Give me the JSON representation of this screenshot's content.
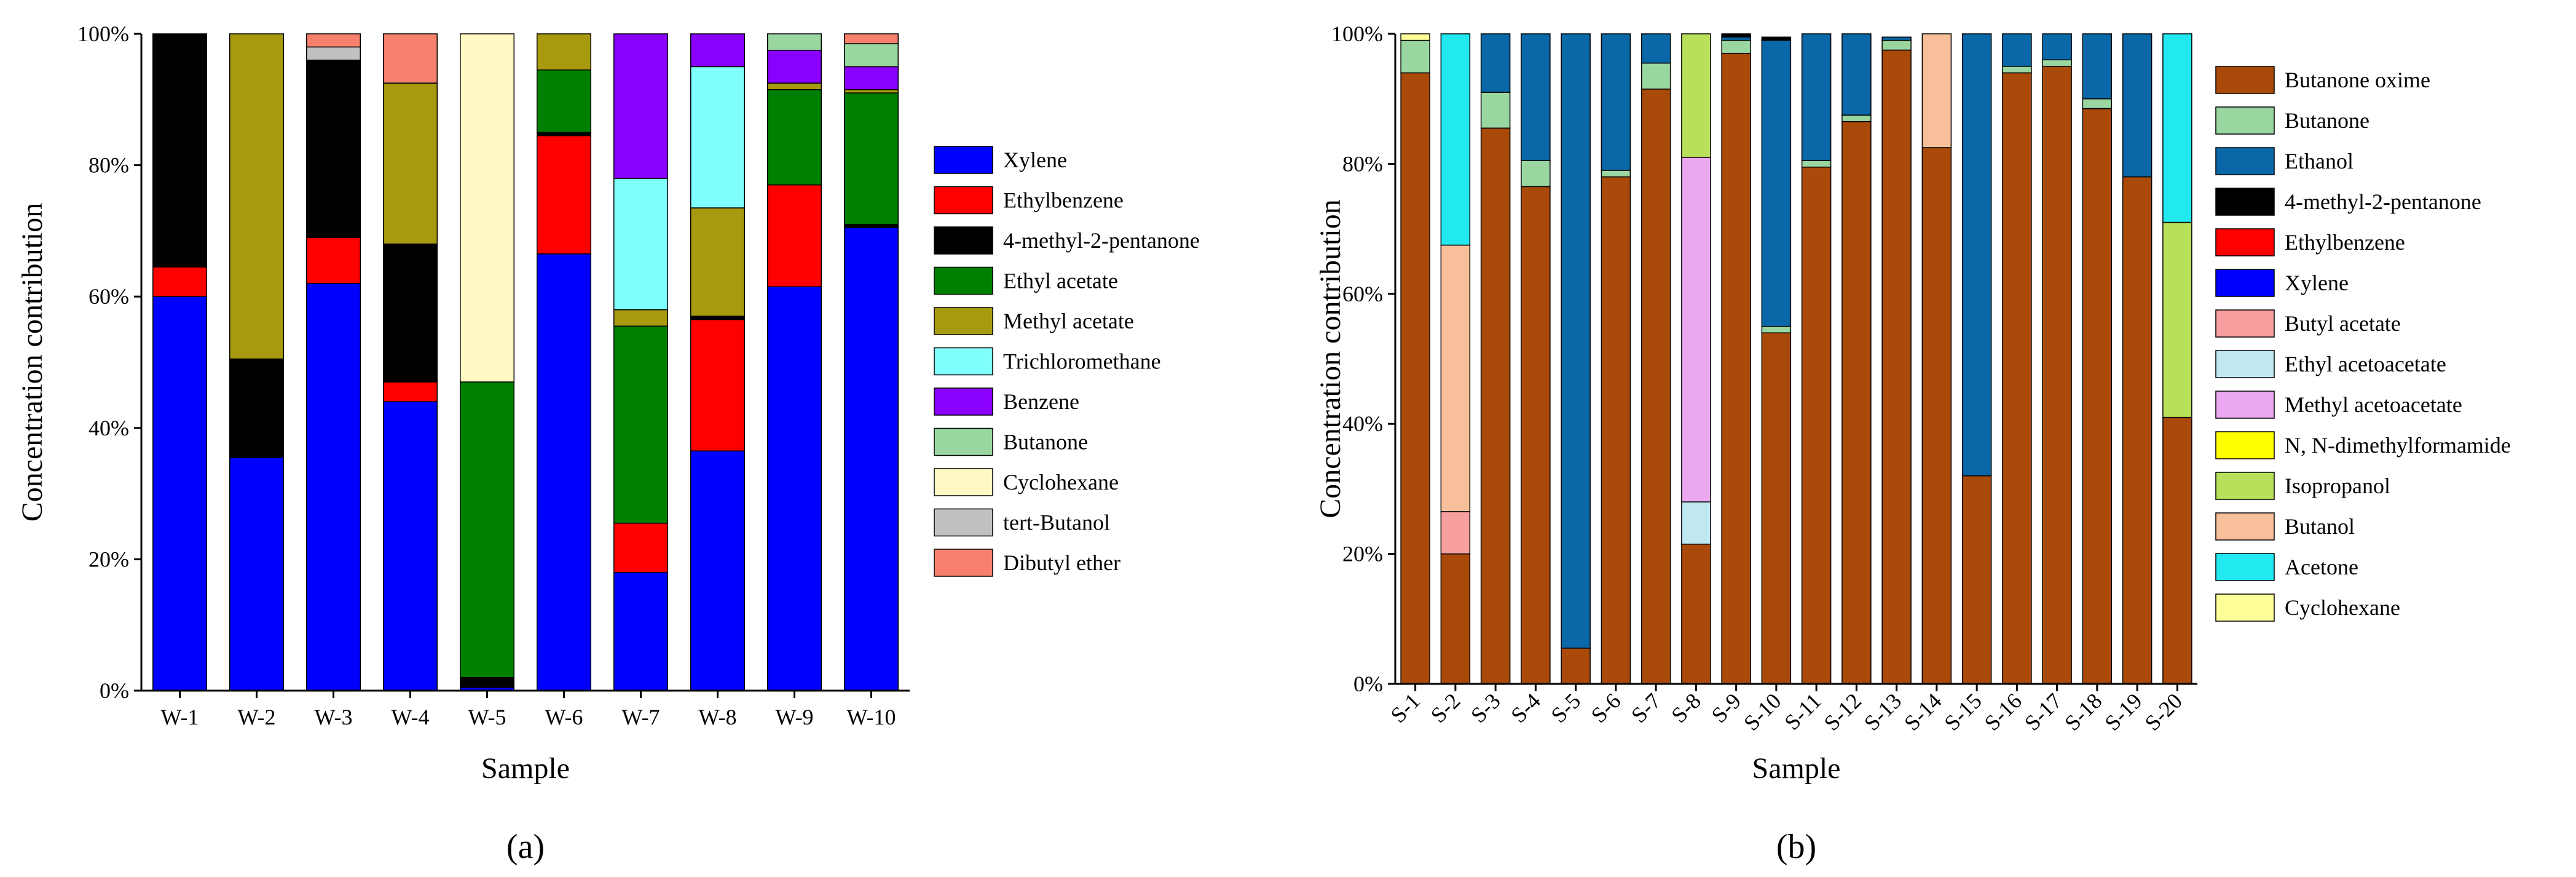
{
  "chart_data": [
    {
      "type": "bar",
      "stacked": true,
      "panel_label": "(a)",
      "xlabel": "Sample",
      "ylabel": "Concentration contribution",
      "ylim": [
        0,
        100
      ],
      "yticks": [
        "0%",
        "20%",
        "40%",
        "60%",
        "80%",
        "100%"
      ],
      "categories": [
        "W-1",
        "W-2",
        "W-3",
        "W-4",
        "W-5",
        "W-6",
        "W-7",
        "W-8",
        "W-9",
        "W-10"
      ],
      "legend_position": "right",
      "series": [
        {
          "name": "Xylene",
          "color": "#0000ff",
          "values": [
            60,
            35.5,
            62,
            44,
            0.5,
            66.5,
            18,
            36.5,
            61.5,
            70.5
          ]
        },
        {
          "name": "Ethylbenzene",
          "color": "#ff0000",
          "values": [
            4.5,
            0,
            7,
            3,
            0,
            18,
            7.5,
            20,
            15.5,
            0
          ]
        },
        {
          "name": "4-methyl-2-pentanone",
          "color": "#000000",
          "values": [
            35.5,
            15,
            27,
            21,
            1.5,
            0.5,
            0,
            0.5,
            0,
            0.5
          ]
        },
        {
          "name": "Ethyl acetate",
          "color": "#008000",
          "values": [
            0,
            0,
            0,
            0,
            45,
            9.5,
            30,
            0,
            14.5,
            20
          ]
        },
        {
          "name": "Methyl acetate",
          "color": "#a89a0f",
          "values": [
            0,
            49.5,
            0,
            24.5,
            0,
            5.5,
            2.5,
            16.5,
            1,
            0.5
          ]
        },
        {
          "name": "Trichloromethane",
          "color": "#80ffff",
          "values": [
            0,
            0,
            0,
            0,
            0,
            0,
            20,
            21.5,
            0,
            0
          ]
        },
        {
          "name": "Benzene",
          "color": "#8a00ff",
          "values": [
            0,
            0,
            0,
            0,
            0,
            0,
            22,
            5,
            5,
            3.5
          ]
        },
        {
          "name": "Butanone",
          "color": "#99d6a0",
          "values": [
            0,
            0,
            0,
            0,
            0,
            0,
            0,
            0,
            2.5,
            3.5
          ]
        },
        {
          "name": "Cyclohexane",
          "color": "#fff7c4",
          "values": [
            0,
            0,
            0,
            0,
            53,
            0,
            0,
            0,
            0,
            0
          ]
        },
        {
          "name": "tert-Butanol",
          "color": "#c0c0c0",
          "values": [
            0,
            0,
            2,
            0,
            0,
            0,
            0,
            0,
            0,
            0
          ]
        },
        {
          "name": "Dibutyl ether",
          "color": "#f8816e",
          "values": [
            0,
            0,
            2,
            7.5,
            0,
            0,
            0,
            0,
            0,
            1.5
          ]
        }
      ]
    },
    {
      "type": "bar",
      "stacked": true,
      "panel_label": "(b)",
      "xlabel": "Sample",
      "ylabel": "Concentration contribution",
      "ylim": [
        0,
        100
      ],
      "yticks": [
        "0%",
        "20%",
        "40%",
        "60%",
        "80%",
        "100%"
      ],
      "categories": [
        "S-1",
        "S-2",
        "S-3",
        "S-4",
        "S-5",
        "S-6",
        "S-7",
        "S-8",
        "S-9",
        "S-10",
        "S-11",
        "S-12",
        "S-13",
        "S-14",
        "S-15",
        "S-16",
        "S-17",
        "S-18",
        "S-19",
        "S-20"
      ],
      "legend_position": "right",
      "series": [
        {
          "name": "Butanone oxime",
          "color": "#a94a0a",
          "values": [
            94,
            20,
            85.5,
            76.5,
            5.5,
            78,
            91.5,
            21.5,
            97,
            54,
            79.5,
            86.5,
            97.5,
            82.5,
            32,
            94,
            95,
            88.5,
            78,
            41
          ]
        },
        {
          "name": "Butanone",
          "color": "#99d6a0",
          "values": [
            5,
            0,
            5.5,
            4,
            0,
            1,
            4,
            0,
            2,
            1,
            1,
            1,
            1.5,
            0,
            0,
            1,
            1,
            1.5,
            0,
            0
          ]
        },
        {
          "name": "Ethanol",
          "color": "#0a67a8",
          "values": [
            0,
            0,
            9,
            19.5,
            94.5,
            21,
            4.5,
            0,
            0.5,
            44,
            19.5,
            12.5,
            0.5,
            0,
            68,
            5,
            4,
            10,
            22,
            0
          ]
        },
        {
          "name": "4-methyl-2-pentanone",
          "color": "#000000",
          "values": [
            0,
            0,
            0,
            0,
            0,
            0,
            0,
            0,
            0.5,
            0.5,
            0,
            0,
            0,
            0,
            0,
            0,
            0,
            0,
            0,
            0
          ]
        },
        {
          "name": "Ethylbenzene",
          "color": "#ff0000",
          "values": [
            0,
            0,
            0,
            0,
            0,
            0,
            0,
            0,
            0,
            0,
            0,
            0,
            0,
            0,
            0,
            0,
            0,
            0,
            0,
            0
          ]
        },
        {
          "name": "Xylene",
          "color": "#0000ff",
          "values": [
            0,
            0,
            0,
            0,
            0,
            0,
            0,
            0,
            0,
            0,
            0,
            0,
            0,
            0,
            0,
            0,
            0,
            0,
            0,
            0
          ]
        },
        {
          "name": "Butyl acetate",
          "color": "#f8a0a0",
          "values": [
            0,
            6.5,
            0,
            0,
            0,
            0,
            0,
            0,
            0,
            0,
            0,
            0,
            0,
            0,
            0,
            0,
            0,
            0,
            0,
            0
          ]
        },
        {
          "name": "Ethyl acetoacetate",
          "color": "#bfe8f0",
          "values": [
            0,
            0,
            0,
            0,
            0,
            0,
            0,
            6.5,
            0,
            0,
            0,
            0,
            0,
            0,
            0,
            0,
            0,
            0,
            0,
            0
          ]
        },
        {
          "name": "Methyl acetoacetate",
          "color": "#eaa8f0",
          "values": [
            0,
            0,
            0,
            0,
            0,
            0,
            0,
            53,
            0,
            0,
            0,
            0,
            0,
            0,
            0,
            0,
            0,
            0,
            0,
            0
          ]
        },
        {
          "name": "N, N-dimethylformamide",
          "color": "#ffff00",
          "values": [
            0,
            0,
            0,
            0,
            0,
            0,
            0,
            0,
            0,
            0,
            0,
            0,
            0,
            0,
            0,
            0,
            0,
            0,
            0,
            0
          ]
        },
        {
          "name": "Isopropanol",
          "color": "#b8e05a",
          "values": [
            0,
            0,
            0,
            0,
            0,
            0,
            0,
            19,
            0,
            0,
            0,
            0,
            0,
            0,
            0,
            0,
            0,
            0,
            0,
            30
          ]
        },
        {
          "name": "Butanol",
          "color": "#f8c09a",
          "values": [
            0,
            41,
            0,
            0,
            0,
            0,
            0,
            0,
            0,
            0,
            0,
            0,
            0,
            17.5,
            0,
            0,
            0,
            0,
            0,
            0
          ]
        },
        {
          "name": "Acetone",
          "color": "#22e8f0",
          "values": [
            0,
            32.5,
            0,
            0,
            0,
            0,
            0,
            0,
            0,
            0,
            0,
            0,
            0,
            0,
            0,
            0,
            0,
            0,
            0,
            29
          ]
        },
        {
          "name": "Cyclohexane",
          "color": "#ffff99",
          "values": [
            1,
            0,
            0,
            0,
            0,
            0,
            0,
            0,
            0,
            0,
            0,
            0,
            0,
            0,
            0,
            0,
            0,
            0,
            0,
            0
          ]
        }
      ]
    }
  ]
}
